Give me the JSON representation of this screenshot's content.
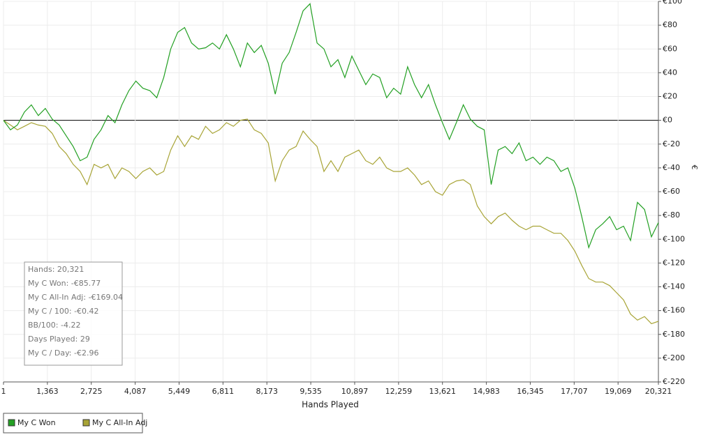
{
  "chart_data": {
    "type": "line",
    "x_label": "Hands Played",
    "y_label": "€",
    "x": [
      1,
      217,
      433,
      650,
      866,
      1082,
      1298,
      1514,
      1730,
      1947,
      2163,
      2379,
      2595,
      2811,
      3027,
      3244,
      3460,
      3676,
      3892,
      4108,
      4324,
      4541,
      4757,
      4973,
      5189,
      5405,
      5621,
      5838,
      6054,
      6270,
      6486,
      6702,
      6918,
      7135,
      7351,
      7567,
      7783,
      7999,
      8215,
      8432,
      8648,
      8864,
      9080,
      9296,
      9512,
      9729,
      9945,
      10161,
      10377,
      10593,
      10810,
      11026,
      11242,
      11458,
      11674,
      11890,
      12107,
      12323,
      12539,
      12755,
      12971,
      13187,
      13404,
      13620,
      13836,
      14052,
      14268,
      14484,
      14701,
      14917,
      15133,
      15349,
      15565,
      15781,
      15998,
      16214,
      16430,
      16646,
      16862,
      17078,
      17295,
      17511,
      17727,
      17943,
      18159,
      18375,
      18592,
      18808,
      19024,
      19240,
      19456,
      19672,
      19889,
      20105,
      20321
    ],
    "series": [
      {
        "name": "My C Won",
        "color": "#23a023",
        "values": [
          0,
          -8,
          -4,
          7,
          13,
          4,
          10,
          1,
          -4,
          -13,
          -22,
          -34,
          -31,
          -16,
          -8,
          4,
          -2,
          13,
          25,
          33,
          27,
          25,
          19,
          36,
          60,
          74,
          78,
          65,
          60,
          61,
          65,
          60,
          72,
          60,
          45,
          65,
          57,
          63,
          48,
          22,
          48,
          57,
          74,
          92,
          98,
          65,
          60,
          45,
          51,
          36,
          54,
          42,
          30,
          39,
          36,
          19,
          27,
          22,
          45,
          30,
          19,
          30,
          13,
          -2,
          -16,
          -2,
          13,
          1,
          -5,
          -8,
          -54,
          -25,
          -22,
          -28,
          -19,
          -34,
          -31,
          -37,
          -31,
          -34,
          -43,
          -40,
          -57,
          -81,
          -107,
          -92,
          -87,
          -81,
          -92,
          -89,
          -101,
          -69,
          -75,
          -98,
          -86
        ]
      },
      {
        "name": "My C All-In Adj",
        "color": "#a8a436",
        "values": [
          0,
          -4,
          -8,
          -5,
          -2,
          -4,
          -5,
          -11,
          -22,
          -28,
          -37,
          -43,
          -54,
          -37,
          -40,
          -37,
          -49,
          -40,
          -43,
          -49,
          -43,
          -40,
          -46,
          -43,
          -25,
          -13,
          -22,
          -13,
          -16,
          -5,
          -11,
          -8,
          -2,
          -5,
          0,
          1,
          -8,
          -11,
          -19,
          -51,
          -34,
          -25,
          -22,
          -9,
          -16,
          -22,
          -43,
          -34,
          -43,
          -31,
          -28,
          -25,
          -34,
          -37,
          -31,
          -40,
          -43,
          -43,
          -40,
          -46,
          -54,
          -51,
          -60,
          -63,
          -54,
          -51,
          -50,
          -54,
          -72,
          -81,
          -87,
          -81,
          -78,
          -84,
          -89,
          -92,
          -89,
          -89,
          -92,
          -95,
          -95,
          -101,
          -110,
          -122,
          -133,
          -136,
          -136,
          -139,
          -145,
          -151,
          -163,
          -168,
          -165,
          -171,
          -169
        ]
      }
    ],
    "xlim": [
      1,
      20321
    ],
    "xticks": [
      1,
      {
        "value": 1363,
        "label": "1,363"
      },
      {
        "value": 2725,
        "label": "2,725"
      },
      {
        "value": 4087,
        "label": "4,087"
      },
      {
        "value": 5449,
        "label": "5,449"
      },
      {
        "value": 6811,
        "label": "6,811"
      },
      {
        "value": 8173,
        "label": "8,173"
      },
      {
        "value": 9535,
        "label": "9,535"
      },
      {
        "value": 10897,
        "label": "10,897"
      },
      {
        "value": 12259,
        "label": "12,259"
      },
      {
        "value": 13621,
        "label": "13,621"
      },
      {
        "value": 14983,
        "label": "14,983"
      },
      {
        "value": 16345,
        "label": "16,345"
      },
      {
        "value": 17707,
        "label": "17,707"
      },
      {
        "value": 19069,
        "label": "19,069"
      },
      {
        "value": 20321,
        "label": "20,321"
      }
    ],
    "ylim": [
      -220,
      100
    ],
    "yticks": [
      {
        "value": 100,
        "label": "€100"
      },
      {
        "value": 80,
        "label": "€80"
      },
      {
        "value": 60,
        "label": "€60"
      },
      {
        "value": 40,
        "label": "€40"
      },
      {
        "value": 20,
        "label": "€20"
      },
      {
        "value": 0,
        "label": "€0"
      },
      {
        "value": -20,
        "label": "€-20"
      },
      {
        "value": -40,
        "label": "€-40"
      },
      {
        "value": -60,
        "label": "€-60"
      },
      {
        "value": -80,
        "label": "€-80"
      },
      {
        "value": -100,
        "label": "€-100"
      },
      {
        "value": -120,
        "label": "€-120"
      },
      {
        "value": -140,
        "label": "€-140"
      },
      {
        "value": -160,
        "label": "€-160"
      },
      {
        "value": -180,
        "label": "€-180"
      },
      {
        "value": -200,
        "label": "€-200"
      },
      {
        "value": -220,
        "label": "€-220"
      }
    ],
    "grid": true,
    "legend": "bottom-left",
    "stats": [
      "Hands: 20,321",
      "My C Won: -€85.77",
      "My C All-In Adj: -€169.04",
      "My C / 100: -€0.42",
      "BB/100: -4.22",
      "Days Played: 29",
      "My C / Day: -€2.96"
    ]
  }
}
